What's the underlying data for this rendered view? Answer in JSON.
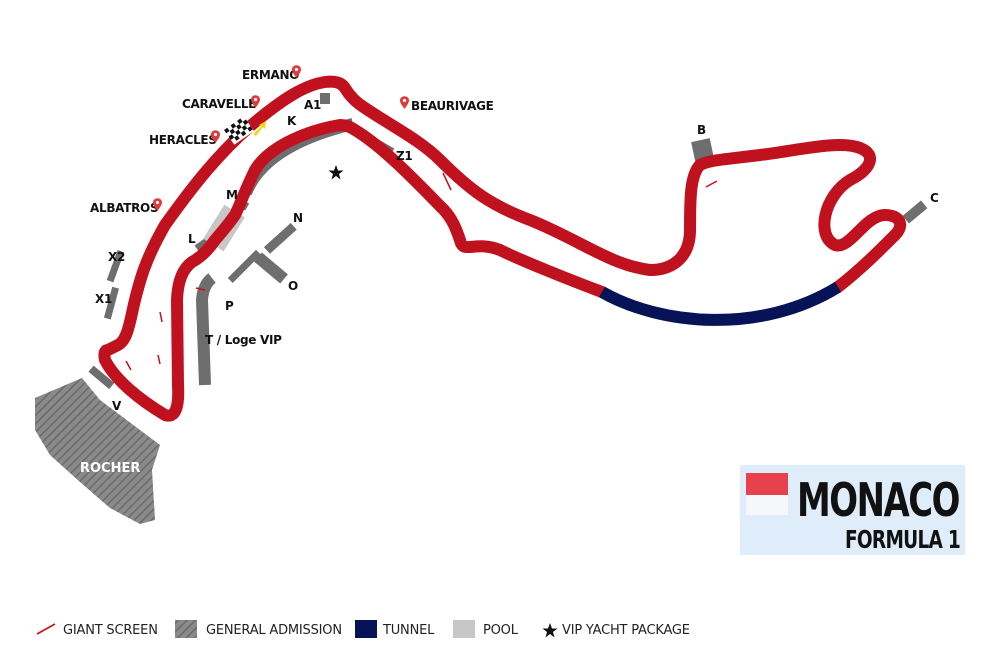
{
  "title": {
    "main": "MONACO",
    "sub": "FORMULA 1",
    "flag_colors": [
      "#e8414e",
      "#f5f7fa"
    ]
  },
  "colors": {
    "track": "#c0111f",
    "tunnel": "#061356",
    "stand": "#6e6e6e",
    "pool": "#c7c7c7",
    "title_panel": "#deedf9"
  },
  "stands": {
    "A1": "A1",
    "K": "K",
    "Z1": "Z1",
    "B": "B",
    "C": "C",
    "M": "M",
    "L": "L",
    "N": "N",
    "O": "O",
    "P": "P",
    "X1": "X1",
    "X2": "X2",
    "V": "V",
    "T": "T / Loge VIP",
    "rocher": "ROCHER"
  },
  "hospitality": {
    "ermano": "ERMANO",
    "caravelle": "CARAVELLE",
    "heracles": "HERACLES",
    "albatros": "ALBATROS",
    "beaurivage": "BEAURIVAGE"
  },
  "legend": {
    "giant_screen": "GIANT SCREEN",
    "general_admission": "GENERAL ADMISSION",
    "tunnel": "TUNNEL",
    "pool": "POOL",
    "vip_yacht": "VIP YACHT PACKAGE"
  }
}
